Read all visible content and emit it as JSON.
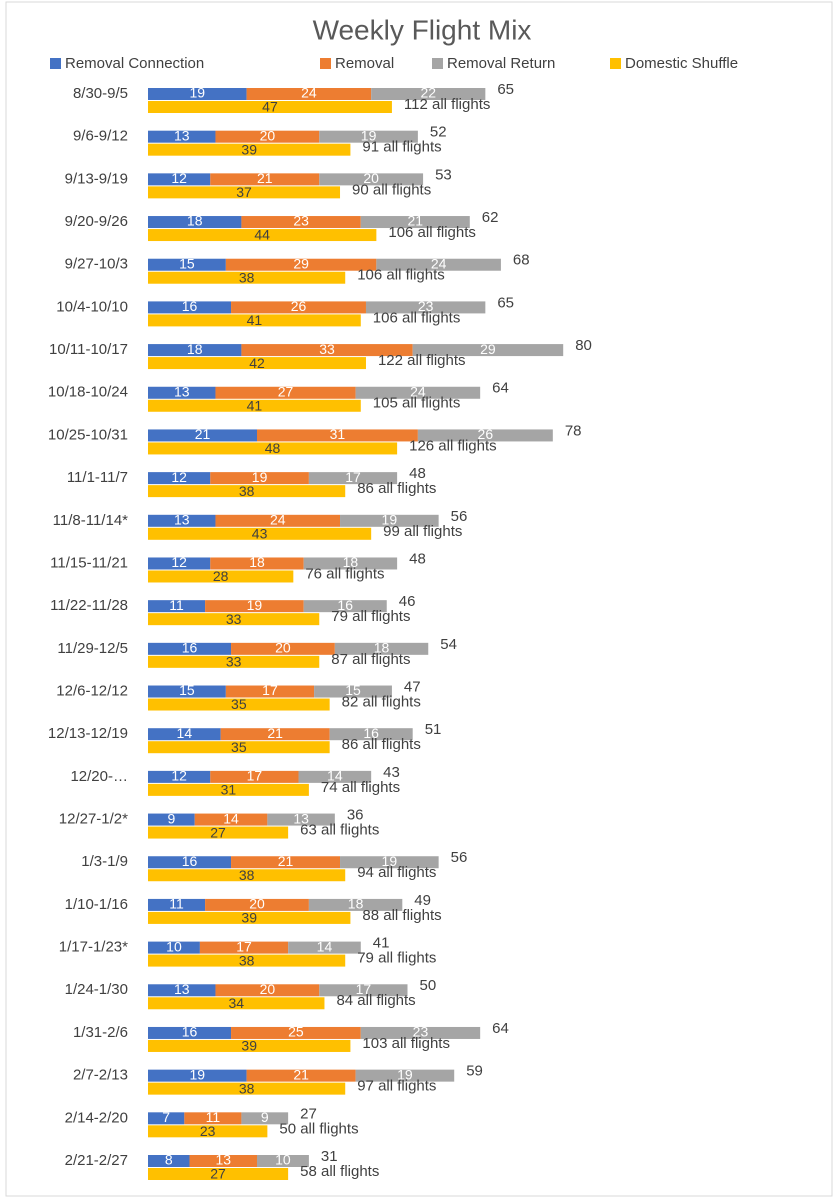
{
  "chart_data": {
    "type": "bar",
    "orientation": "horizontal",
    "title": "Weekly Flight Mix",
    "categories": [
      "8/30-9/5",
      "9/6-9/12",
      "9/13-9/19",
      "9/20-9/26",
      "9/27-10/3",
      "10/4-10/10",
      "10/11-10/17",
      "10/18-10/24",
      "10/25-10/31",
      "11/1-11/7",
      "11/8-11/14*",
      "11/15-11/21",
      "11/22-11/28",
      "11/29-12/5",
      "12/6-12/12",
      "12/13-12/19",
      "12/20-…",
      "12/27-1/2*",
      "1/3-1/9",
      "1/10-1/16",
      "1/17-1/23*",
      "1/24-1/30",
      "1/31-2/6",
      "2/7-2/13",
      "2/14-2/20",
      "2/21-2/27"
    ],
    "series": [
      {
        "name": "Removal Connection",
        "color": "#4472c4",
        "stack": "removal",
        "values": [
          19,
          13,
          12,
          18,
          15,
          16,
          18,
          13,
          21,
          12,
          13,
          12,
          11,
          16,
          15,
          14,
          12,
          9,
          16,
          11,
          10,
          13,
          16,
          19,
          7,
          8
        ]
      },
      {
        "name": "Removal",
        "color": "#ed7d31",
        "stack": "removal",
        "values": [
          24,
          20,
          21,
          23,
          29,
          26,
          33,
          27,
          31,
          19,
          24,
          18,
          19,
          20,
          17,
          21,
          17,
          14,
          21,
          20,
          17,
          20,
          25,
          21,
          11,
          13
        ]
      },
      {
        "name": "Removal Return",
        "color": "#a5a5a5",
        "stack": "removal",
        "values": [
          22,
          19,
          20,
          21,
          24,
          23,
          29,
          24,
          26,
          17,
          19,
          18,
          16,
          18,
          15,
          16,
          14,
          13,
          19,
          18,
          14,
          17,
          23,
          19,
          9,
          10
        ]
      },
      {
        "name": "Domestic Shuffle",
        "color": "#ffc000",
        "stack": "domestic",
        "values": [
          47,
          39,
          37,
          44,
          38,
          41,
          42,
          41,
          48,
          38,
          43,
          28,
          33,
          33,
          35,
          35,
          31,
          27,
          38,
          39,
          38,
          34,
          39,
          38,
          23,
          27
        ]
      }
    ],
    "removal_totals": [
      65,
      52,
      53,
      62,
      68,
      65,
      80,
      64,
      78,
      48,
      56,
      48,
      46,
      54,
      47,
      51,
      43,
      36,
      56,
      49,
      41,
      50,
      64,
      59,
      27,
      31
    ],
    "all_flights": {
      "values": [
        112,
        91,
        90,
        106,
        106,
        106,
        122,
        105,
        126,
        86,
        99,
        76,
        79,
        87,
        82,
        86,
        74,
        63,
        94,
        88,
        79,
        84,
        103,
        97,
        50,
        58
      ],
      "value_labels": [
        "112 all flights",
        "91 all flights",
        "90 all flights",
        "106 all flights",
        "106 all flights",
        "106 all flights",
        "122 all flights",
        "105 all flights",
        "126 all flights",
        "86 all flights",
        "99 all flights",
        "76 all flights",
        "79 all flights",
        "87 all flights",
        "82 all flights",
        "86 all flights",
        "74 all flights",
        "63 all flights",
        "94 all flights",
        "88 all flights",
        "79 all flights",
        "84 all flights",
        "103 all flights",
        "97 all flights",
        "50 all flights",
        "58 all flights"
      ]
    },
    "legend": "top"
  }
}
